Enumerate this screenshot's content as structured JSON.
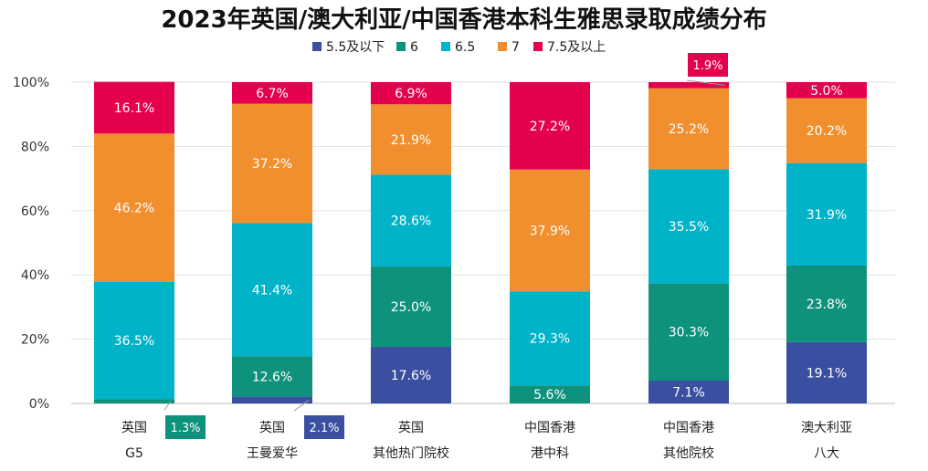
{
  "chart_data": {
    "type": "bar",
    "stacked": true,
    "title": "2023年英国/澳大利亚/中国香港本科生雅思录取成绩分布",
    "xlabel": "",
    "ylabel": "",
    "ylim": [
      0,
      100
    ],
    "yticks": [
      "0%",
      "20%",
      "40%",
      "60%",
      "80%",
      "100%"
    ],
    "legend_position": "top",
    "categories": [
      [
        "英国",
        "G5"
      ],
      [
        "英国",
        "王曼爱华"
      ],
      [
        "英国",
        "其他热门院校"
      ],
      [
        "中国香港",
        "港中科"
      ],
      [
        "中国香港",
        "其他院校"
      ],
      [
        "澳大利亚",
        "八大"
      ]
    ],
    "series": [
      {
        "name": "5.5及以下",
        "color": "#3A4FA0",
        "values": [
          0,
          2.1,
          17.6,
          0,
          7.1,
          19.1
        ],
        "labels": [
          "",
          "2.1%",
          "17.6%",
          "",
          "7.1%",
          "19.1%"
        ]
      },
      {
        "name": "6",
        "color": "#0E927C",
        "values": [
          1.3,
          12.6,
          25.0,
          5.6,
          30.3,
          23.8
        ],
        "labels": [
          "1.3%",
          "12.6%",
          "25.0%",
          "5.6%",
          "30.3%",
          "23.8%"
        ]
      },
      {
        "name": "6.5",
        "color": "#00B3C8",
        "values": [
          36.5,
          41.4,
          28.6,
          29.3,
          35.5,
          31.9
        ],
        "labels": [
          "36.5%",
          "41.4%",
          "28.6%",
          "29.3%",
          "35.5%",
          "31.9%"
        ]
      },
      {
        "name": "7",
        "color": "#F18F2E",
        "values": [
          46.2,
          37.2,
          21.9,
          37.9,
          25.2,
          20.2
        ],
        "labels": [
          "46.2%",
          "37.2%",
          "21.9%",
          "37.9%",
          "25.2%",
          "20.2%"
        ]
      },
      {
        "name": "7.5及以上",
        "color": "#E5004F",
        "values": [
          16.1,
          6.7,
          6.9,
          27.2,
          1.9,
          5.0
        ],
        "labels": [
          "16.1%",
          "6.7%",
          "6.9%",
          "27.2%",
          "1.9%",
          "5.0%"
        ]
      }
    ],
    "callouts": [
      {
        "category": 0,
        "series": 1,
        "text": "1.3%"
      },
      {
        "category": 1,
        "series": 0,
        "text": "2.1%"
      },
      {
        "category": 4,
        "series": 4,
        "text": "1.9%"
      }
    ]
  }
}
